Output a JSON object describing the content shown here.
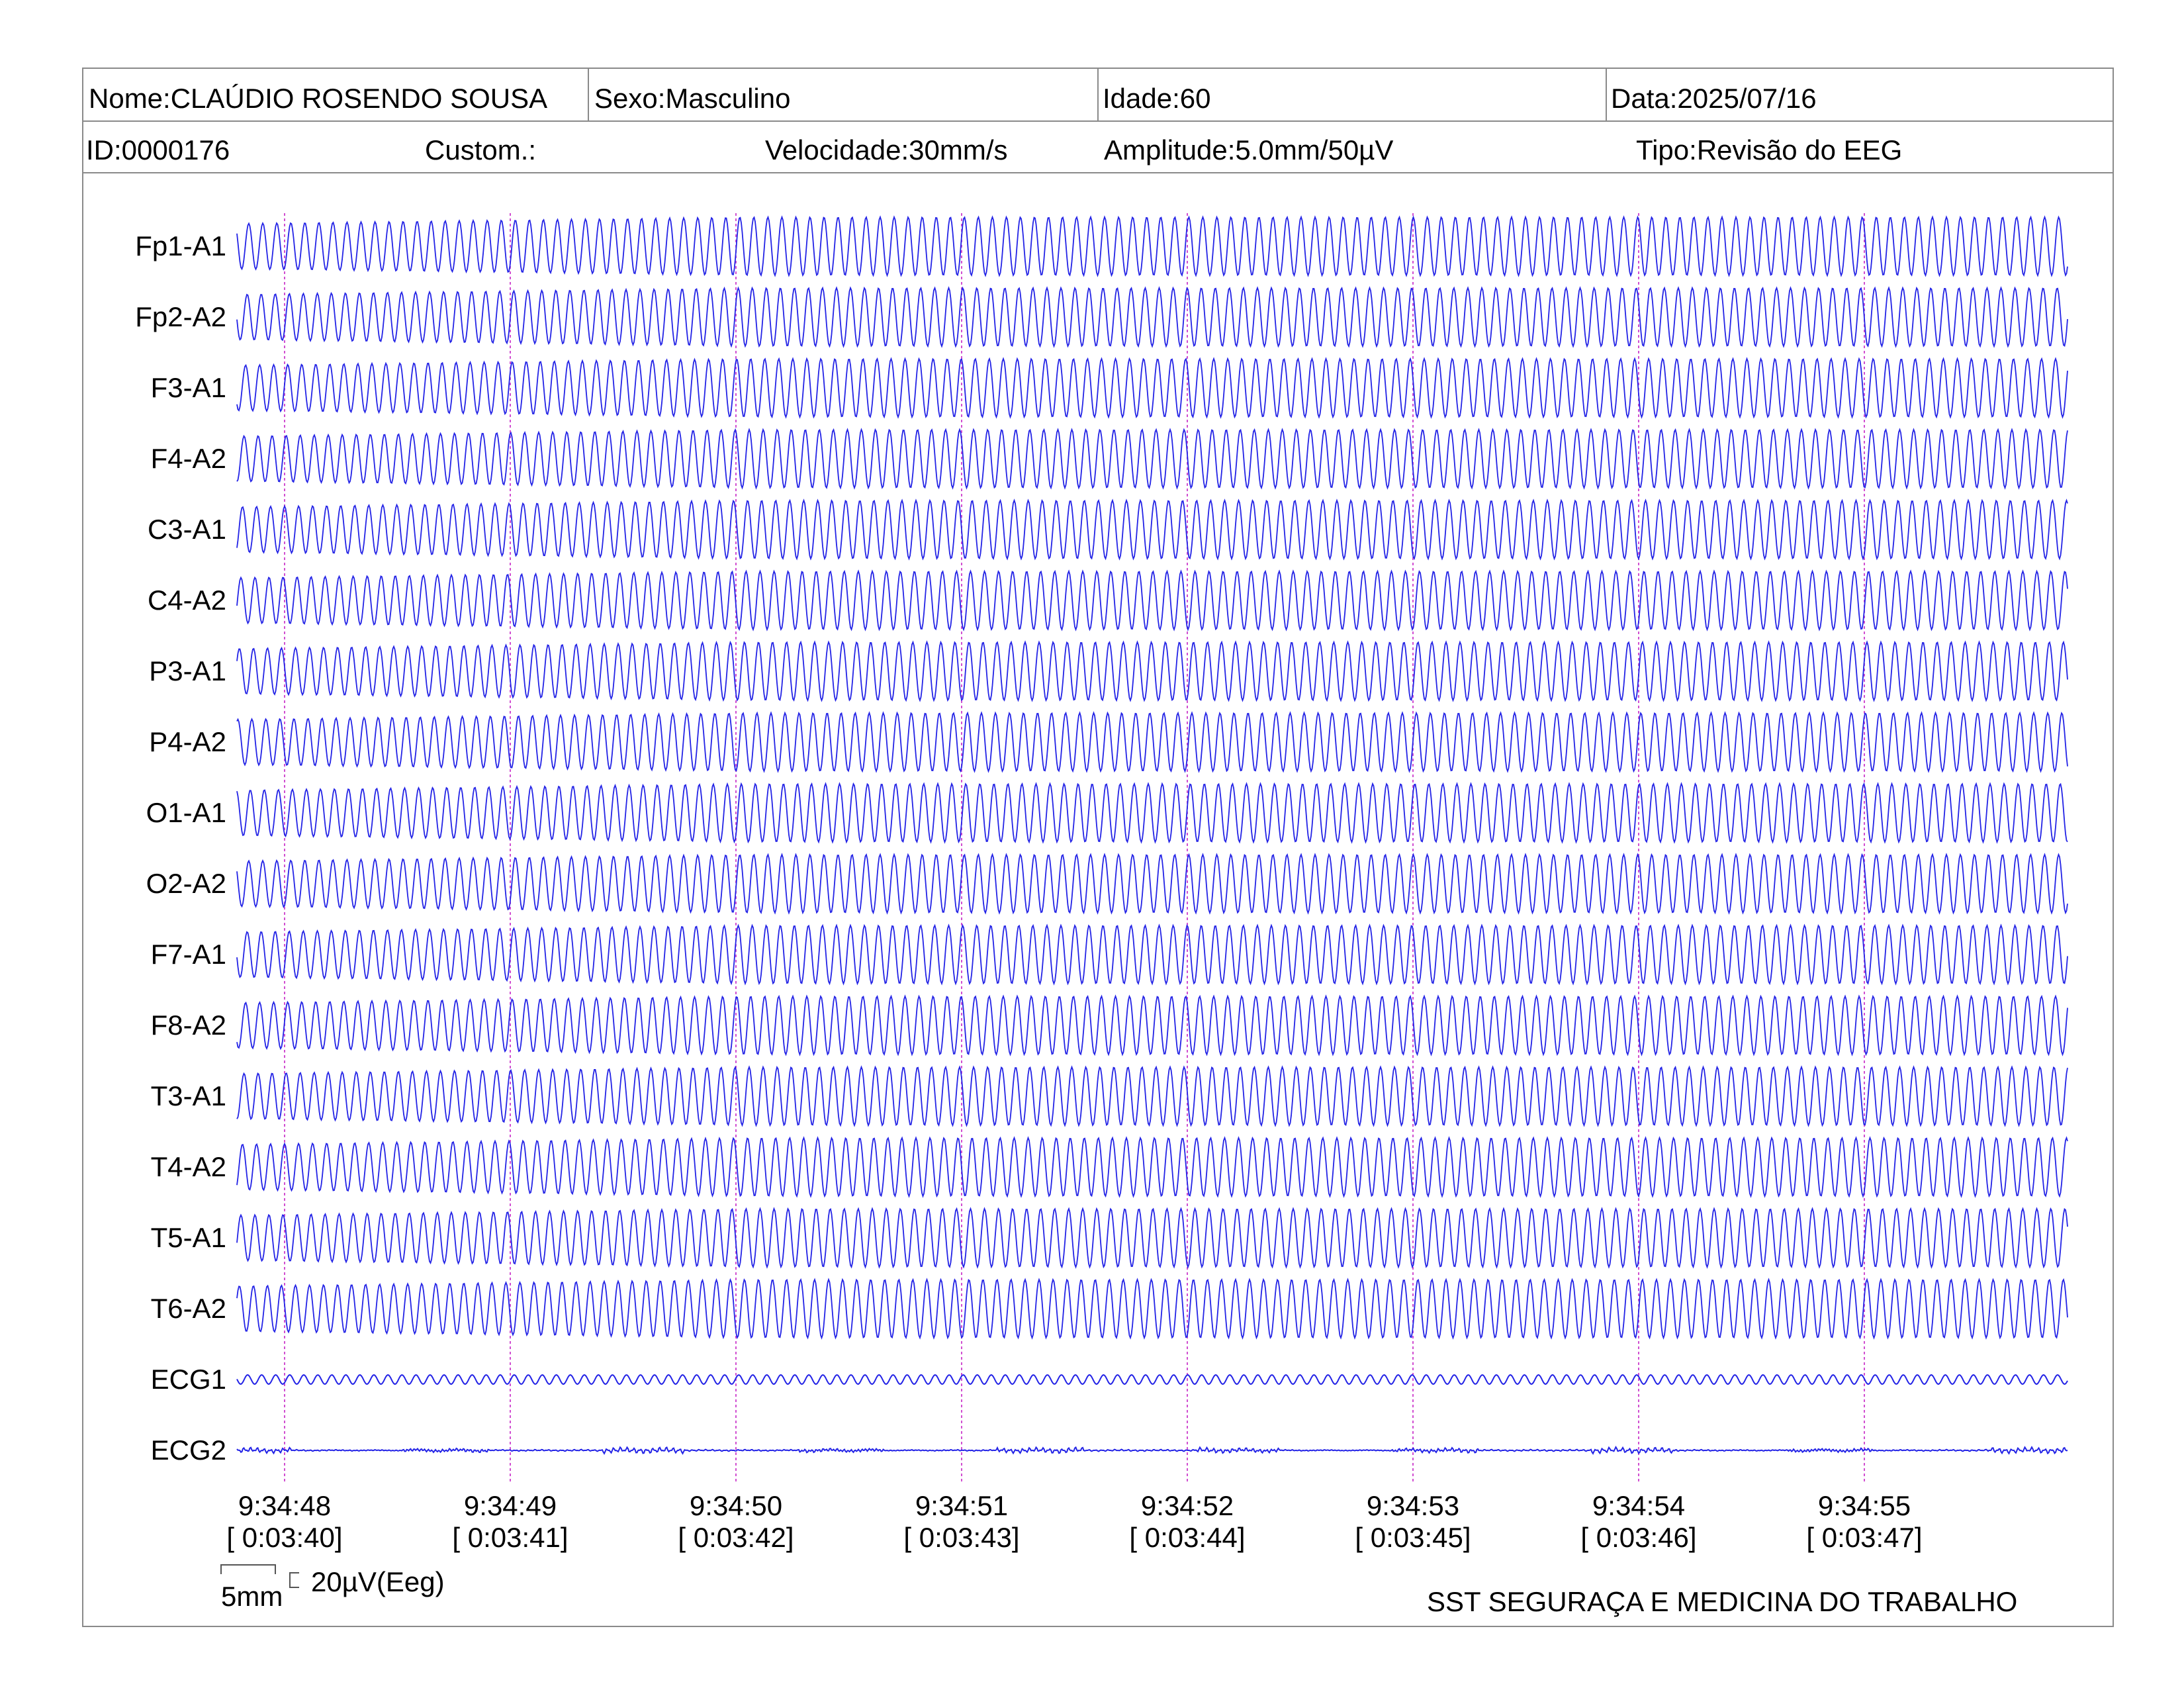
{
  "header": {
    "nome": "Nome:CLAÚDIO ROSENDO SOUSA",
    "sexo": "Sexo:Masculino",
    "idade": "Idade:60",
    "data": "Data:2025/07/16",
    "id": "ID:0000176",
    "custom": "Custom.:",
    "velocidade": "Velocidade:30mm/s",
    "amplitude": "Amplitude:5.0mm/50µV",
    "tipo": "Tipo:Revisão do EEG"
  },
  "chart_data": {
    "type": "line",
    "channels": [
      "Fp1-A1",
      "Fp2-A2",
      "F3-A1",
      "F4-A2",
      "C3-A1",
      "C4-A2",
      "P3-A1",
      "P4-A2",
      "O1-A1",
      "O2-A2",
      "F7-A1",
      "F8-A2",
      "T3-A1",
      "T4-A2",
      "T5-A1",
      "T6-A2",
      "ECG1",
      "ECG2"
    ],
    "time_ticks": [
      "9:34:48",
      "9:34:49",
      "9:34:50",
      "9:34:51",
      "9:34:52",
      "9:34:53",
      "9:34:54",
      "9:34:55"
    ],
    "elapsed_ticks": [
      "[ 0:03:40]",
      "[ 0:03:41]",
      "[ 0:03:42]",
      "[ 0:03:43]",
      "[ 0:03:44]",
      "[ 0:03:45]",
      "[ 0:03:46]",
      "[ 0:03:47]"
    ],
    "trace_color": "#2323e6",
    "marker_color": "#d14fd1",
    "waveform": "continuous sinusoidal oscillation, ~16 cycles per second on EEG channels; small irregular ECG traces"
  },
  "footer": {
    "scale_time": "5mm",
    "scale_amp": "20µV(Eeg)",
    "institution": "SST SEGURAÇA E MEDICINA DO TRABALHO"
  }
}
